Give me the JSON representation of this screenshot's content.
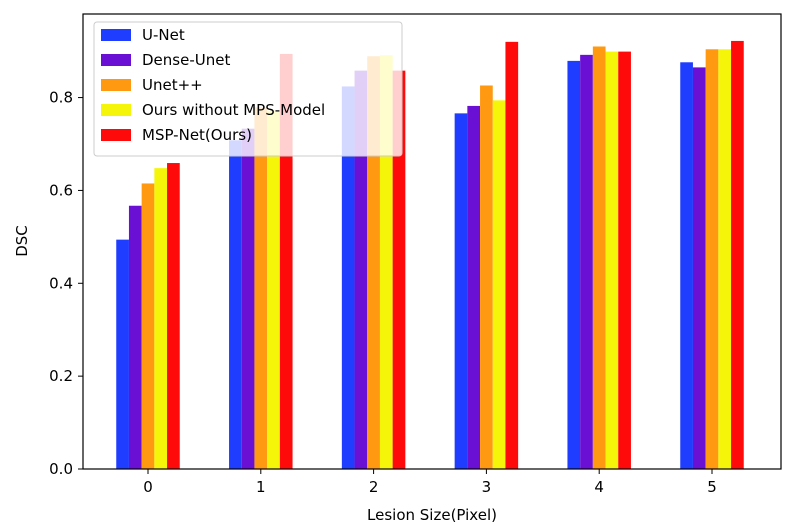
{
  "chart_data": {
    "type": "bar",
    "title": "",
    "xlabel": "Lesion Size(Pixel)",
    "ylabel": "DSC",
    "categories": [
      "0",
      "1",
      "2",
      "3",
      "4",
      "5"
    ],
    "ylim": [
      0.0,
      0.98
    ],
    "yticks": [
      "0.0",
      "0.2",
      "0.4",
      "0.6",
      "0.8"
    ],
    "grid": false,
    "legend_position": "upper-left",
    "series": [
      {
        "name": "U-Net",
        "color": "#1f3dff",
        "values": [
          0.494,
          0.708,
          0.824,
          0.766,
          0.879,
          0.876
        ]
      },
      {
        "name": "Dense-Unet",
        "color": "#6a0fd4",
        "values": [
          0.567,
          0.733,
          0.858,
          0.782,
          0.892,
          0.865
        ]
      },
      {
        "name": "Unet++",
        "color": "#ff9912",
        "values": [
          0.615,
          0.779,
          0.889,
          0.826,
          0.91,
          0.904
        ]
      },
      {
        "name": "Ours without MPS-Model",
        "color": "#f5f50a",
        "values": [
          0.648,
          0.772,
          0.891,
          0.794,
          0.899,
          0.904
        ]
      },
      {
        "name": "MSP-Net(Ours)",
        "color": "#ff0a0a",
        "values": [
          0.659,
          0.894,
          0.858,
          0.92,
          0.899,
          0.922
        ]
      }
    ]
  }
}
